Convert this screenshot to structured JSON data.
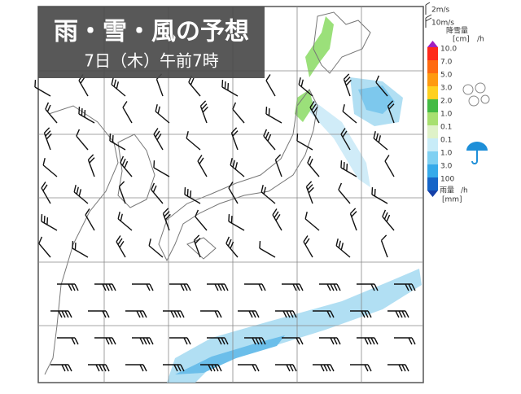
{
  "header": {
    "title": "雨・雪・風の予想",
    "subtitle": "7日（木）午前7時"
  },
  "legend": {
    "wind": [
      "2m/s",
      "10m/s"
    ],
    "snow": {
      "title": "降雪量",
      "unit": "[cm]",
      "per": "/h",
      "labels": [
        "10.0",
        "7.0",
        "5.0",
        "3.0",
        "2.0",
        "1.0",
        "0.1"
      ]
    },
    "rain": {
      "labels": [
        "0.1",
        "1.0",
        "3.0",
        "100"
      ],
      "title": "雨量",
      "per": "/h",
      "unit": "[mm]"
    }
  }
}
